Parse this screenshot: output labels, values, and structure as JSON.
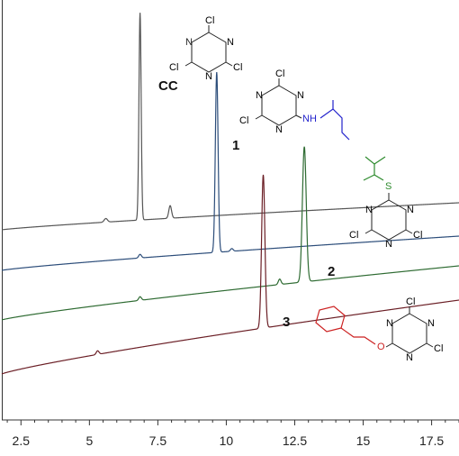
{
  "chart_data": {
    "type": "line",
    "title": "",
    "xlabel": "",
    "ylabel": "",
    "xlim": [
      1.8,
      18.5
    ],
    "x_ticks": [
      2.5,
      5,
      7.5,
      10,
      12.5,
      15,
      17.5
    ],
    "x_tick_labels": [
      "2.5",
      "5",
      "7.5",
      "10",
      "12.5",
      "15",
      "17.5"
    ],
    "grid": false,
    "series": [
      {
        "name": "CC",
        "color": "#555555",
        "baseline_start": 255,
        "baseline_end": 225,
        "peaks": [
          {
            "x": 5.6,
            "height": 4,
            "width": 0.06
          },
          {
            "x": 6.85,
            "height": 230,
            "width": 0.04
          },
          {
            "x": 7.95,
            "height": 14,
            "width": 0.05
          }
        ]
      },
      {
        "name": "1",
        "color": "#2c4d7a",
        "baseline_start": 300,
        "baseline_end": 262,
        "peaks": [
          {
            "x": 6.85,
            "height": 4,
            "width": 0.05
          },
          {
            "x": 9.65,
            "height": 200,
            "width": 0.05
          },
          {
            "x": 10.2,
            "height": 3,
            "width": 0.05
          }
        ]
      },
      {
        "name": "2",
        "color": "#2e6b32",
        "baseline_start": 355,
        "baseline_end": 295,
        "peaks": [
          {
            "x": 6.85,
            "height": 4,
            "width": 0.05
          },
          {
            "x": 11.95,
            "height": 6,
            "width": 0.05
          },
          {
            "x": 12.85,
            "height": 150,
            "width": 0.07
          }
        ]
      },
      {
        "name": "3",
        "color": "#6b1f26",
        "baseline_start": 415,
        "baseline_end": 333,
        "peaks": [
          {
            "x": 5.3,
            "height": 4,
            "width": 0.05
          },
          {
            "x": 11.35,
            "height": 170,
            "width": 0.06
          }
        ]
      }
    ],
    "annotations": [
      {
        "text": "CC",
        "series": "CC"
      },
      {
        "text": "1",
        "series": "1"
      },
      {
        "text": "2",
        "series": "2"
      },
      {
        "text": "3",
        "series": "3"
      }
    ],
    "structure_labels": {
      "cl": "Cl",
      "n": "N",
      "nh": "NH",
      "s": "S",
      "o": "O"
    }
  }
}
